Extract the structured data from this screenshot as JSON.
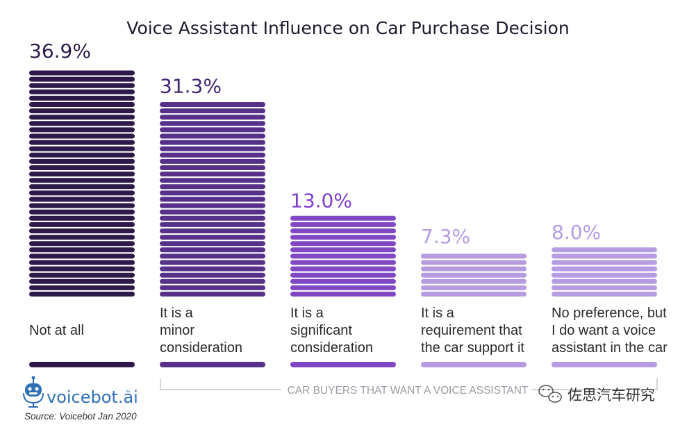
{
  "chart_data": {
    "type": "bar",
    "title": "Voice Assistant Influence on Car Purchase Decision",
    "categories": [
      [
        "Not at all"
      ],
      [
        "It is a",
        "minor",
        "consideration"
      ],
      [
        "It is a",
        "significant",
        "consideration"
      ],
      [
        "It is a",
        "requirement that",
        "the car support it"
      ],
      [
        "No preference, but",
        "I do want a voice",
        "assistant in the car"
      ]
    ],
    "values": [
      36.9,
      31.3,
      13.0,
      7.3,
      8.0
    ],
    "value_labels": [
      "36.9%",
      "31.3%",
      "13.0%",
      "7.3%",
      "8.0%"
    ],
    "colors": [
      "#2d1a4a",
      "#573189",
      "#8048c3",
      "#b69be0",
      "#b59ce3"
    ],
    "value_colors": [
      "#2d1a4a",
      "#422470",
      "#7e3fd0",
      "#b69be0",
      "#b59ce3"
    ],
    "unit": "%",
    "xlabel": "",
    "ylabel": "",
    "grid": false,
    "bracket_label": "CAR BUYERS THAT WANT A VOICE ASSISTANT",
    "bracket_covers": [
      1,
      2,
      3,
      4
    ]
  },
  "brand": {
    "name": "voicebot",
    "suffix": ".ai",
    "trademark": "™",
    "color": "#2f6fb5"
  },
  "source": "Source: Voicebot Jan 2020",
  "watermark": "佐思汽车研究"
}
